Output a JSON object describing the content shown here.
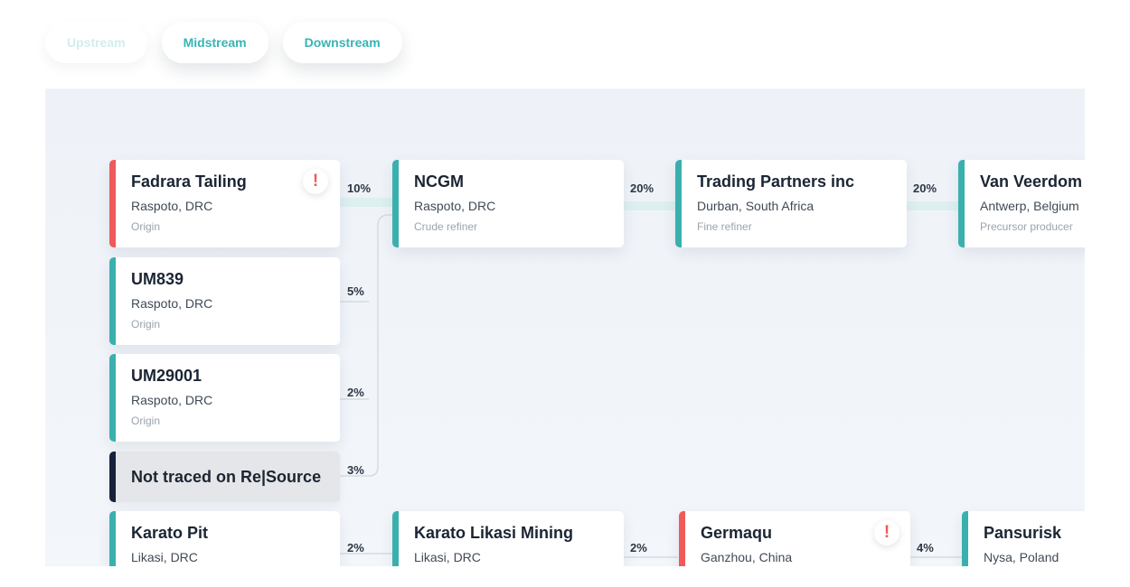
{
  "tabs": [
    {
      "label": "Upstream",
      "state": "faded"
    },
    {
      "label": "Midstream",
      "state": "active"
    },
    {
      "label": "Downstream",
      "state": "normal"
    }
  ],
  "colors": {
    "accent": "#3ab0ae",
    "alert": "#f05a5a",
    "untraced": "#16213a"
  },
  "nodes": {
    "fadrara": {
      "name": "Fadrara Tailing",
      "location": "Raspoto, DRC",
      "role": "Origin",
      "warning": "!"
    },
    "um839": {
      "name": "UM839",
      "location": "Raspoto, DRC",
      "role": "Origin"
    },
    "um29001": {
      "name": "UM29001",
      "location": "Raspoto, DRC",
      "role": "Origin"
    },
    "not_traced": {
      "name": "Not traced on Re|Source"
    },
    "ncgm": {
      "name": "NCGM",
      "location": "Raspoto, DRC",
      "role": "Crude refiner"
    },
    "trading": {
      "name": "Trading Partners inc",
      "location": "Durban, South Africa",
      "role": "Fine refiner"
    },
    "veerdom": {
      "name": "Van Veerdom",
      "location": "Antwerp, Belgium",
      "role": "Precursor producer"
    },
    "karato_pit": {
      "name": "Karato Pit",
      "location": "Likasi, DRC"
    },
    "karato_mining": {
      "name": "Karato Likasi Mining",
      "location": "Likasi, DRC"
    },
    "germaqu": {
      "name": "Germaqu",
      "location": "Ganzhou, China",
      "warning": "!"
    },
    "pansurisk": {
      "name": "Pansurisk",
      "location": "Nysa, Poland"
    }
  },
  "links": {
    "fadrara_ncgm": "10%",
    "um839_ncgm": "5%",
    "um29001_ncgm": "2%",
    "not_traced_ncgm": "3%",
    "ncgm_trading": "20%",
    "trading_veerdom": "20%",
    "karato_pit_mining": "2%",
    "mining_germaqu": "2%",
    "germaqu_pansurisk": "4%"
  }
}
